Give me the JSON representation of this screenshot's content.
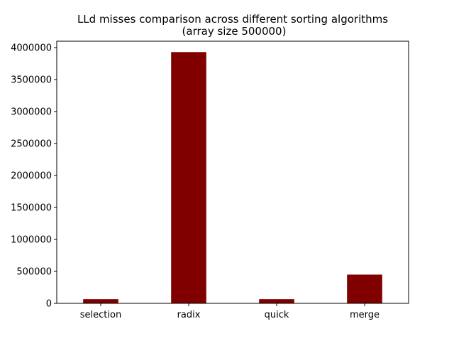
{
  "chart_data": {
    "type": "bar",
    "title": "LLd misses comparison across different sorting algorithms",
    "subtitle": "(array size 500000)",
    "xlabel": "",
    "ylabel": "",
    "categories": [
      "selection",
      "radix",
      "quick",
      "merge"
    ],
    "values": [
      65000,
      3930000,
      65000,
      450000
    ],
    "ylim": [
      0,
      4100000
    ],
    "yticks": [
      0,
      500000,
      1000000,
      1500000,
      2000000,
      2500000,
      3000000,
      3500000,
      4000000
    ],
    "ytick_labels": [
      "0",
      "500000",
      "1000000",
      "1500000",
      "2000000",
      "2500000",
      "3000000",
      "3500000",
      "4000000"
    ],
    "bar_color": "#800000",
    "grid": false,
    "legend": "none"
  }
}
